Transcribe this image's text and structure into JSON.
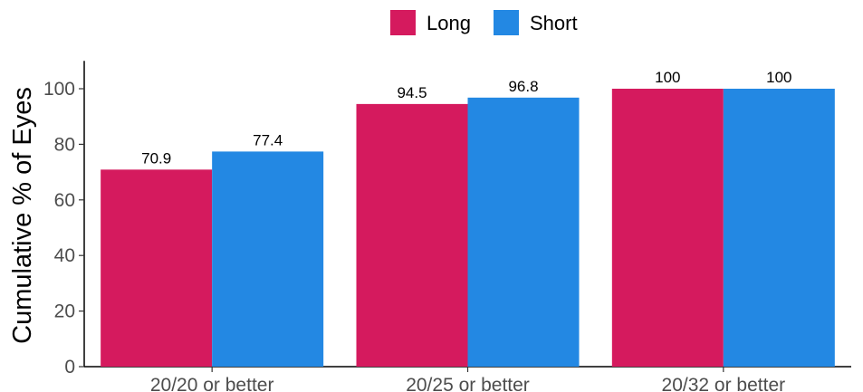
{
  "chart_data": {
    "type": "bar",
    "categories": [
      "20/20 or better",
      "20/25 or better",
      "20/32 or better"
    ],
    "series": [
      {
        "name": "Long",
        "values": [
          70.9,
          94.5,
          100
        ],
        "labels": [
          "70.9",
          "94.5",
          "100"
        ],
        "color": "#D51A5E"
      },
      {
        "name": "Short",
        "values": [
          77.4,
          96.8,
          100
        ],
        "labels": [
          "77.4",
          "96.8",
          "100"
        ],
        "color": "#2388E3"
      }
    ],
    "title": "",
    "xlabel": "",
    "ylabel": "Cumulative % of Eyes",
    "ylim": [
      0,
      100
    ],
    "yticks": [
      0,
      20,
      40,
      60,
      80,
      100
    ],
    "grid": false,
    "legend_position": "top"
  }
}
